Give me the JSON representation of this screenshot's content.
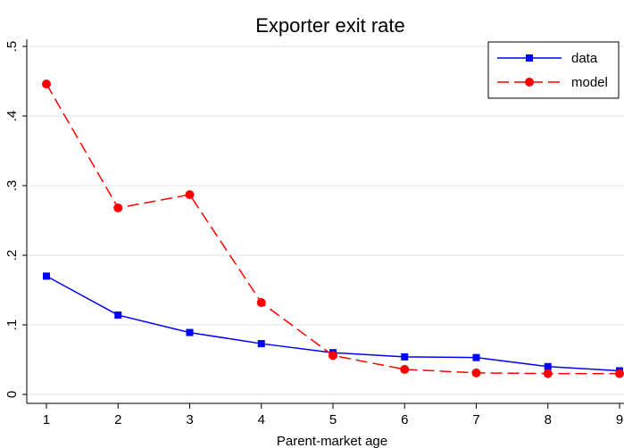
{
  "chart_data": {
    "type": "line",
    "title": "Exporter exit rate",
    "xlabel": "Parent-market age",
    "ylabel": "",
    "x": [
      1,
      2,
      3,
      4,
      5,
      6,
      7,
      8,
      9
    ],
    "xlim": [
      1,
      9
    ],
    "ylim": [
      0,
      0.5
    ],
    "yticks": [
      0,
      0.1,
      0.2,
      0.3,
      0.4,
      0.5
    ],
    "ytick_labels": [
      "0",
      ".1",
      ".2",
      ".3",
      ".4",
      ".5"
    ],
    "xtick_labels": [
      "1",
      "2",
      "3",
      "4",
      "5",
      "6",
      "7",
      "8",
      "9"
    ],
    "grid": true,
    "legend_position": "top-right",
    "series": [
      {
        "name": "data",
        "color": "#0000ff",
        "marker": "square",
        "line_style": "solid",
        "values": [
          0.17,
          0.114,
          0.089,
          0.073,
          0.06,
          0.054,
          0.053,
          0.04,
          0.034
        ]
      },
      {
        "name": "model",
        "color": "#ff0000",
        "marker": "circle",
        "line_style": "dashed",
        "values": [
          0.446,
          0.268,
          0.287,
          0.132,
          0.056,
          0.036,
          0.031,
          0.03,
          0.03
        ]
      }
    ]
  }
}
